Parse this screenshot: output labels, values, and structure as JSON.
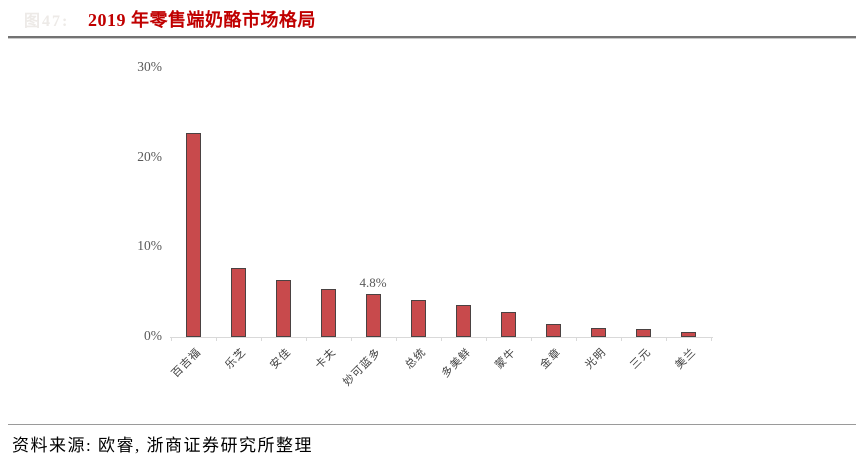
{
  "figure": {
    "faded_tag": "图47:",
    "title": "2019 年零售端奶酪市场格局"
  },
  "chart_data": {
    "type": "bar",
    "title": "2019 年零售端奶酪市场格局",
    "categories": [
      "百吉福",
      "乐芝",
      "安佳",
      "卡夫",
      "妙可蓝多",
      "总统",
      "多美鲜",
      "蒙牛",
      "金章",
      "光明",
      "三元",
      "美兰"
    ],
    "values": [
      22.7,
      7.7,
      6.4,
      5.4,
      4.8,
      4.1,
      3.6,
      2.8,
      1.4,
      1.0,
      0.9,
      0.6
    ],
    "unit": "%",
    "data_labels": [
      {
        "category_index": 4,
        "text": "4.8%"
      }
    ],
    "y_ticks": [
      {
        "label": "30%",
        "value": 30
      },
      {
        "label": "20%",
        "value": 20
      },
      {
        "label": "10%",
        "value": 10
      },
      {
        "label": "0%",
        "value": 0
      }
    ],
    "ylim": [
      0,
      30
    ],
    "grid": false,
    "legend": "none",
    "bar_color": "#c84a4c",
    "bar_border_color": "#4a4242",
    "title_color": "#c00000",
    "axis_text_color": "#595959"
  },
  "footer": {
    "source": "资料来源: 欧睿, 浙商证券研究所整理"
  }
}
